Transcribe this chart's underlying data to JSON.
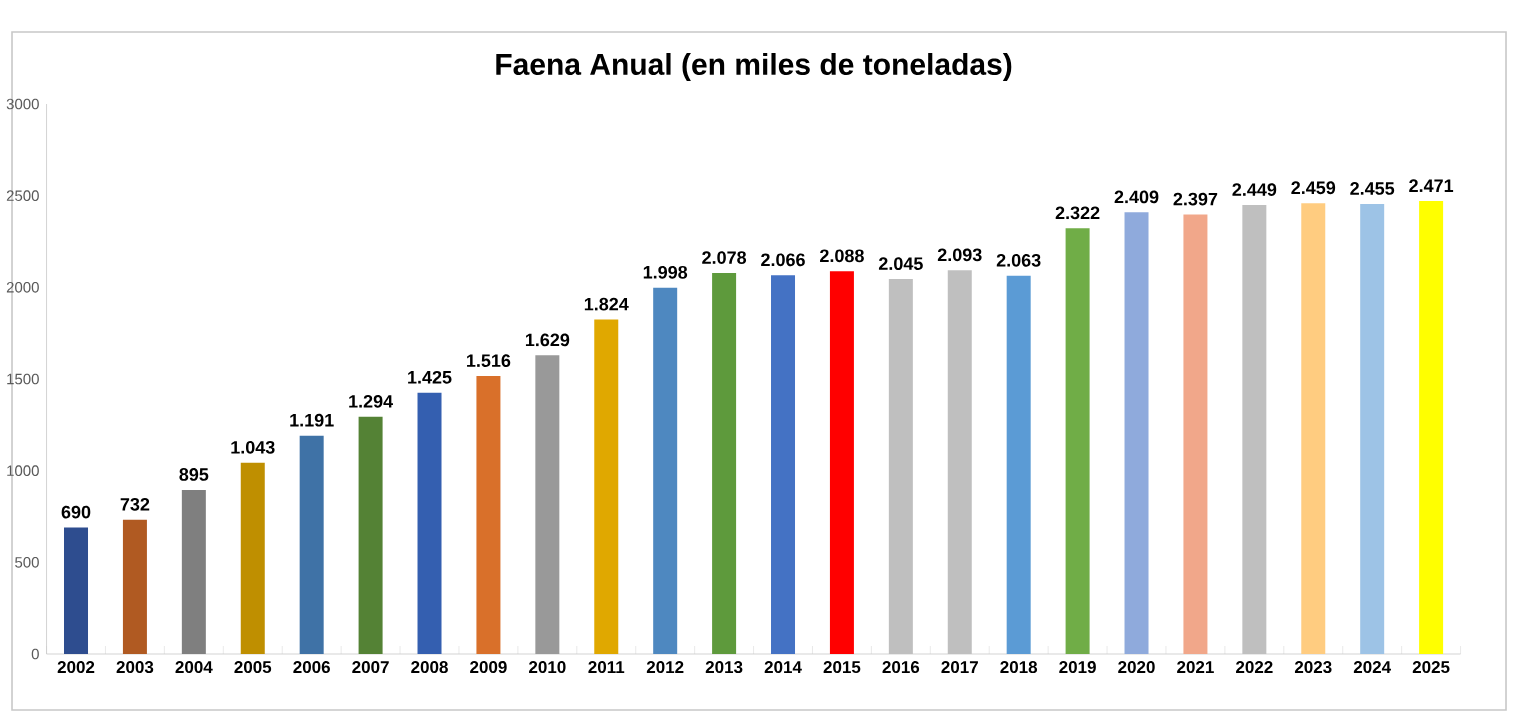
{
  "chart_data": {
    "type": "bar",
    "title": "Faena Anual (en miles de toneladas)",
    "categories": [
      "2002",
      "2003",
      "2004",
      "2005",
      "2006",
      "2007",
      "2008",
      "2009",
      "2010",
      "2011",
      "2012",
      "2013",
      "2014",
      "2015",
      "2016",
      "2017",
      "2018",
      "2019",
      "2020",
      "2021",
      "2022",
      "2023",
      "2024",
      "2025"
    ],
    "values": [
      690,
      732,
      895,
      1043,
      1191,
      1294,
      1425,
      1516,
      1629,
      1824,
      1998,
      2078,
      2066,
      2088,
      2045,
      2093,
      2063,
      2322,
      2409,
      2397,
      2449,
      2459,
      2455,
      2471
    ],
    "value_labels": [
      "690",
      "732",
      "895",
      "1.043",
      "1.191",
      "1.294",
      "1.425",
      "1.516",
      "1.629",
      "1.824",
      "1.998",
      "2.078",
      "2.066",
      "2.088",
      "2.045",
      "2.093",
      "2.063",
      "2.322",
      "2.409",
      "2.397",
      "2.449",
      "2.459",
      "2.455",
      "2.471"
    ],
    "colors": [
      "#2e4d8f",
      "#b05a22",
      "#7f7f7f",
      "#bf8f00",
      "#3f72a6",
      "#548235",
      "#345fb0",
      "#d9702a",
      "#999999",
      "#e0a800",
      "#4e88c0",
      "#5e9a3c",
      "#4472c4",
      "#ff0000",
      "#bfbfbf",
      "#bfbfbf",
      "#5b9bd5",
      "#70ad47",
      "#8faadc",
      "#f1a78a",
      "#bfbfbf",
      "#ffcc80",
      "#9dc3e6",
      "#ffff00"
    ],
    "ylim": [
      0,
      3000
    ],
    "yticks": [
      0,
      500,
      1000,
      1500,
      2000,
      2500,
      3000
    ],
    "grid": false
  }
}
